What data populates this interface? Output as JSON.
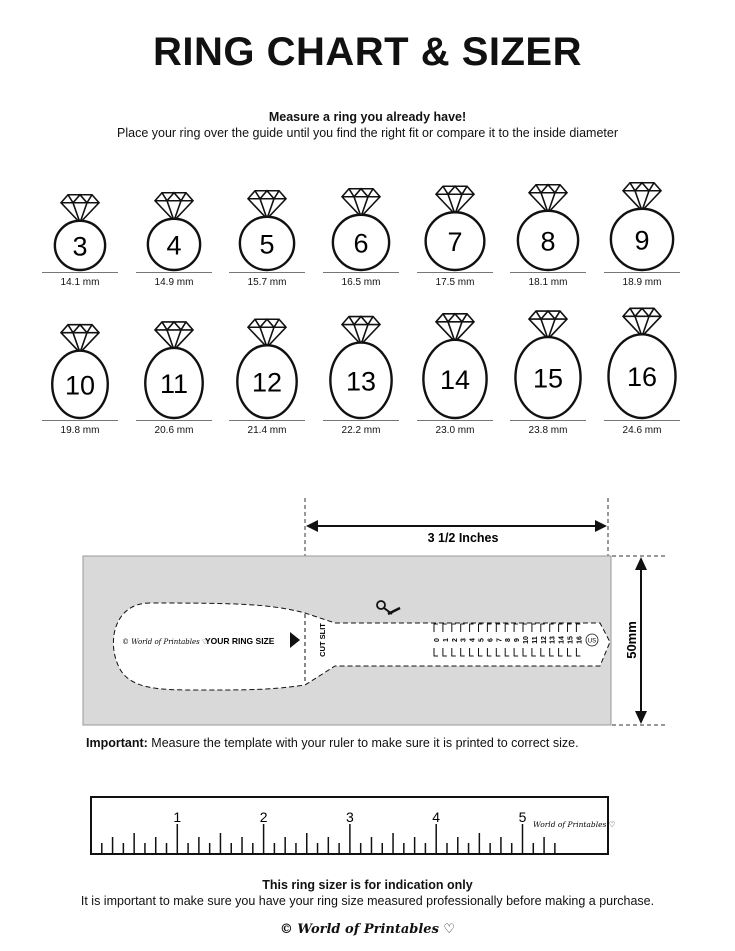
{
  "title": "RING CHART & SIZER",
  "instructions": {
    "heading": "Measure a ring you already have!",
    "text": "Place your ring over the guide until you find the right fit or compare it to the inside diameter"
  },
  "rings": [
    {
      "size": "3",
      "diameter": "14.1 mm",
      "mm": 14.1
    },
    {
      "size": "4",
      "diameter": "14.9 mm",
      "mm": 14.9
    },
    {
      "size": "5",
      "diameter": "15.7 mm",
      "mm": 15.7
    },
    {
      "size": "6",
      "diameter": "16.5 mm",
      "mm": 16.5
    },
    {
      "size": "7",
      "diameter": "17.5 mm",
      "mm": 17.5
    },
    {
      "size": "8",
      "diameter": "18.1 mm",
      "mm": 18.1
    },
    {
      "size": "9",
      "diameter": "18.9 mm",
      "mm": 18.9
    },
    {
      "size": "10",
      "diameter": "19.8 mm",
      "mm": 19.8
    },
    {
      "size": "11",
      "diameter": "20.6 mm",
      "mm": 20.6
    },
    {
      "size": "12",
      "diameter": "21.4 mm",
      "mm": 21.4
    },
    {
      "size": "13",
      "diameter": "22.2 mm",
      "mm": 22.2
    },
    {
      "size": "14",
      "diameter": "23.0 mm",
      "mm": 23.0
    },
    {
      "size": "15",
      "diameter": "23.8 mm",
      "mm": 23.8
    },
    {
      "size": "16",
      "diameter": "24.6 mm",
      "mm": 24.6
    }
  ],
  "sizer": {
    "width_label": "3 1/2 Inches",
    "height_label": "50mm",
    "brand": "© World of Printables ♡",
    "your_ring_size": "YOUR RING SIZE",
    "cut_slit": "CUT SLIT",
    "scale_numbers": [
      "0",
      "1",
      "2",
      "3",
      "4",
      "5",
      "6",
      "7",
      "8",
      "9",
      "10",
      "11",
      "12",
      "13",
      "14",
      "15",
      "16"
    ],
    "unit_badge": "US"
  },
  "important": {
    "label": "Important:",
    "text": " Measure the template with your ruler to make sure it is printed to correct size."
  },
  "ruler": {
    "numbers": [
      "1",
      "2",
      "3",
      "4",
      "5"
    ],
    "brand": "World of Printables ♡"
  },
  "disclaimer": {
    "heading": "This ring sizer is for indication only",
    "text": "It is important to make sure you have your ring size measured professionally before making a purchase."
  },
  "footer_brand": "© World of Printables ♡",
  "colors": {
    "sizer_bg": "#d9d9d9",
    "ink": "#111111"
  }
}
